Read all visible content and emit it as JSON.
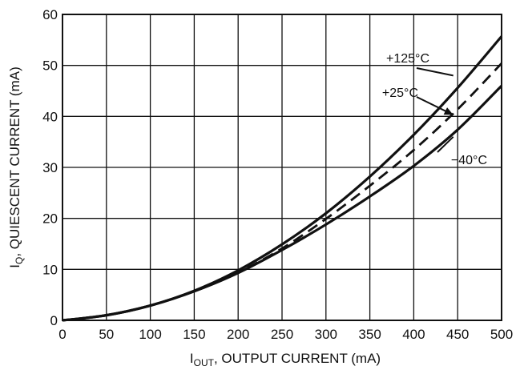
{
  "chart_data": {
    "type": "line",
    "xlabel": {
      "main": "I",
      "sub": "OUT",
      "rest": ", OUTPUT CURRENT (mA)"
    },
    "ylabel": {
      "main": "I",
      "sub": "Q",
      "rest": ", QUIESCENT CURRENT (mA)"
    },
    "xlim": [
      0,
      500
    ],
    "ylim": [
      0,
      60
    ],
    "xticks": [
      0,
      50,
      100,
      150,
      200,
      250,
      300,
      350,
      400,
      450,
      500
    ],
    "yticks": [
      0,
      10,
      20,
      30,
      40,
      50,
      60
    ],
    "grid": true,
    "x": [
      0,
      50,
      100,
      150,
      200,
      250,
      300,
      350,
      400,
      450,
      500
    ],
    "series": [
      {
        "name": "+125°C",
        "style": "solid",
        "values": [
          0,
          1.0,
          2.9,
          5.8,
          9.8,
          14.9,
          21.0,
          28.2,
          36.4,
          45.6,
          55.7
        ]
      },
      {
        "name": "+25°C",
        "style": "dashed",
        "values": [
          0,
          1.0,
          2.9,
          5.7,
          9.4,
          14.1,
          19.9,
          26.4,
          33.4,
          41.4,
          50.4
        ]
      },
      {
        "name": "−40°C",
        "style": "solid",
        "values": [
          0,
          1.0,
          2.9,
          5.7,
          9.3,
          13.8,
          18.8,
          24.3,
          30.3,
          37.4,
          46.0
        ]
      }
    ],
    "annotations": [
      {
        "text": "+125°C",
        "target_x": 445,
        "target_y": 48.0
      },
      {
        "text": "+25°C",
        "target_x": 445,
        "target_y": 40.3
      },
      {
        "text": "−40°C",
        "target_x": 445,
        "target_y": 36.0
      }
    ]
  },
  "colors": {
    "line": "#111111",
    "grid": "#111111",
    "background": "#ffffff"
  }
}
